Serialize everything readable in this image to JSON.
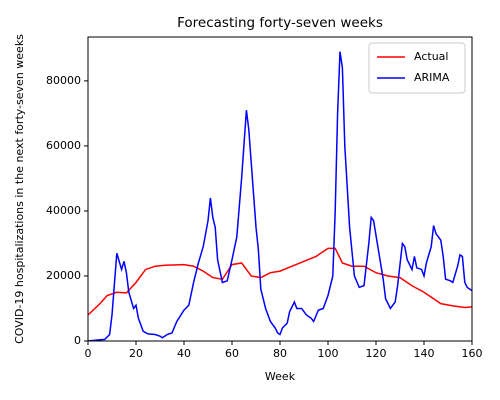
{
  "chart_data": {
    "type": "line",
    "title": "Forecasting forty-seven weeks",
    "x_label": "Week",
    "y_label": "COVID-19 hospitalizations in the next forty-seven weeks",
    "xlim": [
      0,
      160
    ],
    "ylim": [
      0,
      93500
    ],
    "xticks": [
      0,
      20,
      40,
      60,
      80,
      100,
      120,
      140,
      160
    ],
    "yticks": [
      0,
      20000,
      40000,
      60000,
      80000
    ],
    "legend": "upper right",
    "series": [
      {
        "name": "Actual",
        "color": "#ff0000",
        "x": [
          0,
          5,
          8,
          12,
          16,
          20,
          24,
          28,
          32,
          40,
          44,
          48,
          52,
          56,
          60,
          64,
          68,
          72,
          76,
          80,
          85,
          90,
          95,
          100,
          103,
          106,
          110,
          115,
          120,
          125,
          130,
          135,
          140,
          143,
          147,
          152,
          157,
          160
        ],
        "values": [
          8000,
          11500,
          14000,
          15000,
          14800,
          18000,
          22000,
          23000,
          23300,
          23500,
          23000,
          21500,
          19500,
          19000,
          23500,
          24000,
          20000,
          19500,
          21000,
          21500,
          23000,
          24500,
          26000,
          28500,
          28500,
          24000,
          23000,
          23000,
          21000,
          20000,
          19500,
          17000,
          15000,
          13500,
          11500,
          10800,
          10300,
          10500
        ]
      },
      {
        "name": "ARIMA",
        "color": "#0000ff",
        "x": [
          0,
          4,
          7,
          9,
          10,
          12,
          14,
          15,
          16,
          17,
          19,
          20,
          21,
          23,
          25,
          28,
          30,
          31,
          33,
          35,
          37,
          40,
          42,
          44,
          46,
          48,
          50,
          51,
          52,
          53,
          54,
          56,
          58,
          60,
          62,
          64,
          66,
          67,
          68,
          70,
          71,
          72,
          74,
          76,
          78,
          79,
          80,
          81,
          83,
          84,
          86,
          87,
          89,
          91,
          93,
          94,
          96,
          98,
          100,
          102,
          103,
          104,
          105,
          106,
          107,
          109,
          111,
          113,
          115,
          117,
          118,
          119,
          121,
          123,
          124,
          126,
          128,
          129,
          131,
          132,
          133,
          135,
          136,
          137,
          139,
          140,
          141,
          143,
          144,
          145,
          147,
          148,
          149,
          151,
          152,
          154,
          155,
          156,
          157,
          158,
          160
        ],
        "values": [
          0,
          300,
          500,
          2000,
          8000,
          27000,
          22000,
          24500,
          21000,
          15000,
          10000,
          11000,
          7000,
          3000,
          2200,
          2000,
          1500,
          1000,
          2000,
          2500,
          6000,
          9500,
          11000,
          18000,
          24000,
          29000,
          37000,
          44000,
          38000,
          35000,
          25000,
          18000,
          18500,
          25000,
          32000,
          50000,
          71000,
          65000,
          55000,
          35000,
          28000,
          16000,
          10000,
          6000,
          4000,
          2500,
          2000,
          4000,
          5500,
          9000,
          12000,
          10000,
          10000,
          8000,
          7000,
          6000,
          9500,
          10000,
          14000,
          20000,
          40000,
          70000,
          89000,
          84000,
          60000,
          35000,
          20000,
          16500,
          17000,
          30000,
          38000,
          37000,
          28000,
          19000,
          13000,
          10000,
          12000,
          17000,
          30000,
          29000,
          25000,
          22000,
          26000,
          22500,
          22000,
          20000,
          24000,
          29000,
          35500,
          33000,
          31000,
          26000,
          19000,
          18500,
          18000,
          23000,
          26500,
          26000,
          18000,
          16500,
          15500
        ]
      }
    ]
  }
}
